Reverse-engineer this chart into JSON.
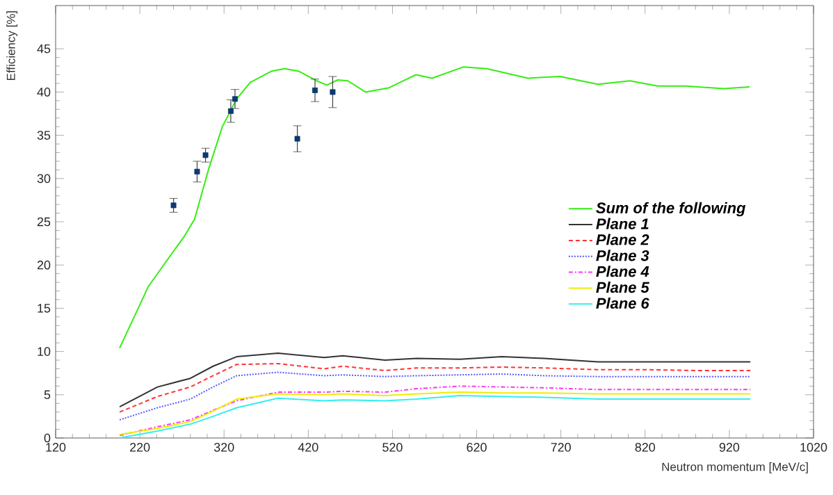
{
  "chart_data": {
    "type": "line",
    "xlabel": "Neutron momentum [MeV/c]",
    "ylabel": "Efficiency [%]",
    "xlim": [
      120,
      1020
    ],
    "ylim": [
      0,
      50
    ],
    "xticks": [
      120,
      220,
      320,
      420,
      520,
      620,
      720,
      820,
      920,
      1020
    ],
    "yticks": [
      0,
      5,
      10,
      15,
      20,
      25,
      30,
      35,
      40,
      45
    ],
    "grid": false,
    "legend": "right",
    "series": [
      {
        "name": "Sum of the following",
        "color": "#33ee11",
        "line_style": "solid",
        "x": [
          196,
          230,
          260,
          272,
          285,
          302,
          318,
          335,
          351,
          376,
          392,
          409,
          430,
          442,
          455,
          467,
          488,
          516,
          533,
          548,
          567,
          604,
          632,
          681,
          719,
          764,
          802,
          835,
          868,
          913,
          944
        ],
        "values": [
          10.4,
          17.5,
          21.6,
          23.2,
          25.3,
          31.2,
          36.0,
          39.2,
          41.1,
          42.4,
          42.7,
          42.4,
          41.3,
          40.8,
          41.4,
          41.3,
          40.0,
          40.5,
          41.3,
          42.0,
          41.6,
          42.9,
          42.7,
          41.6,
          41.8,
          40.9,
          41.3,
          40.7,
          40.7,
          40.4,
          40.6
        ]
      },
      {
        "name": "Plane 1",
        "color": "#333333",
        "line_style": "solid",
        "x": [
          196,
          241,
          280,
          307,
          335,
          384,
          439,
          461,
          511,
          549,
          600,
          650,
          700,
          764,
          820,
          880,
          945
        ],
        "values": [
          3.6,
          5.9,
          6.9,
          8.3,
          9.4,
          9.8,
          9.3,
          9.5,
          9.0,
          9.2,
          9.1,
          9.4,
          9.2,
          8.8,
          8.8,
          8.8,
          8.8
        ]
      },
      {
        "name": "Plane 2",
        "color": "#ff3333",
        "line_style": "dashed",
        "x": [
          196,
          241,
          280,
          307,
          335,
          384,
          439,
          461,
          511,
          549,
          600,
          650,
          700,
          764,
          820,
          880,
          945
        ],
        "values": [
          3.0,
          4.8,
          5.9,
          7.2,
          8.5,
          8.6,
          8.0,
          8.3,
          7.8,
          8.1,
          8.1,
          8.2,
          8.1,
          7.9,
          7.9,
          7.8,
          7.8
        ]
      },
      {
        "name": "Plane 3",
        "color": "#5555ff",
        "line_style": "dotted",
        "x": [
          196,
          241,
          280,
          307,
          335,
          384,
          439,
          461,
          511,
          549,
          600,
          650,
          700,
          764,
          820,
          880,
          945
        ],
        "values": [
          2.1,
          3.5,
          4.5,
          5.9,
          7.2,
          7.6,
          7.2,
          7.3,
          7.1,
          7.2,
          7.3,
          7.4,
          7.2,
          7.1,
          7.1,
          7.1,
          7.1
        ]
      },
      {
        "name": "Plane 4",
        "color": "#ff33ff",
        "line_style": "dashdot",
        "x": [
          196,
          241,
          280,
          307,
          335,
          384,
          439,
          461,
          511,
          549,
          600,
          650,
          700,
          764,
          820,
          880,
          945
        ],
        "values": [
          0.3,
          1.3,
          2.1,
          3.2,
          4.3,
          5.3,
          5.3,
          5.4,
          5.3,
          5.7,
          6.0,
          5.9,
          5.8,
          5.6,
          5.6,
          5.6,
          5.6
        ]
      },
      {
        "name": "Plane 5",
        "color": "#eeee00",
        "line_style": "solid",
        "x": [
          196,
          241,
          280,
          307,
          335,
          384,
          439,
          461,
          511,
          549,
          600,
          650,
          700,
          764,
          820,
          880,
          945
        ],
        "values": [
          0.4,
          1.1,
          1.9,
          3.1,
          4.5,
          5.1,
          5.0,
          5.1,
          4.9,
          5.1,
          5.3,
          5.2,
          5.2,
          5.1,
          5.1,
          5.1,
          5.1
        ]
      },
      {
        "name": "Plane 6",
        "color": "#33eeee",
        "line_style": "solid",
        "x": [
          196,
          241,
          280,
          307,
          335,
          384,
          439,
          461,
          511,
          549,
          600,
          650,
          700,
          764,
          820,
          880,
          945
        ],
        "values": [
          0.0,
          0.8,
          1.6,
          2.5,
          3.5,
          4.6,
          4.3,
          4.4,
          4.3,
          4.5,
          4.9,
          4.8,
          4.7,
          4.5,
          4.5,
          4.5,
          4.5
        ]
      },
      {
        "type": "scatter",
        "color": "#0b3a73",
        "marker": "square",
        "x": [
          260,
          288,
          298,
          328,
          333,
          407,
          428,
          449
        ],
        "values": [
          26.9,
          30.8,
          32.7,
          37.8,
          39.2,
          34.6,
          40.2,
          40.0
        ],
        "errors": [
          0.8,
          1.2,
          0.8,
          1.3,
          1.1,
          1.5,
          1.3,
          1.8
        ]
      }
    ]
  }
}
